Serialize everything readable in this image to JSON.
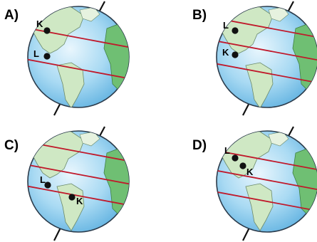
{
  "question": {
    "options": [
      {
        "id": "A",
        "label": "A)",
        "points": [
          {
            "name": "K"
          },
          {
            "name": "L"
          }
        ]
      },
      {
        "id": "B",
        "label": "B)",
        "points": [
          {
            "name": "L"
          },
          {
            "name": "K"
          }
        ]
      },
      {
        "id": "C",
        "label": "C)",
        "points": [
          {
            "name": "L"
          },
          {
            "name": "K"
          }
        ]
      },
      {
        "id": "D",
        "label": "D)",
        "points": [
          {
            "name": "L"
          },
          {
            "name": "K"
          }
        ]
      }
    ]
  },
  "colors": {
    "ocean": "#8cc9ea",
    "land": "#cfe8c4",
    "land_east": "#6fbf73",
    "latitude_lines": "#c0182a",
    "axis": "#111111",
    "point": "#111111"
  }
}
